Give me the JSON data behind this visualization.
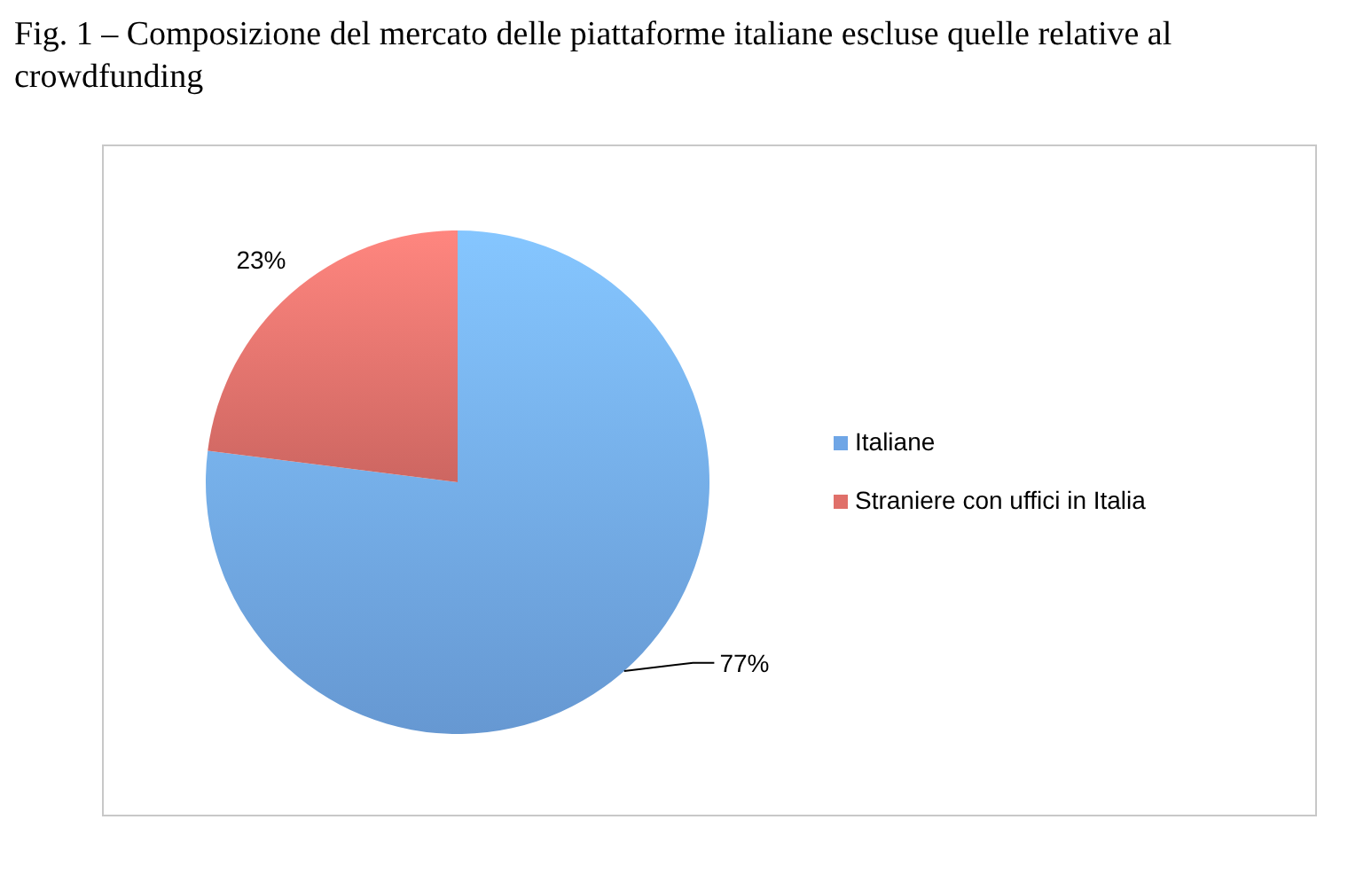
{
  "chart_data": {
    "type": "pie",
    "title": "Fig. 1 – Composizione del mercato delle piattaforme italiane escluse quelle relative al crowdfunding",
    "categories": [
      "Italiane",
      "Straniere con uffici in Italia"
    ],
    "values": [
      77,
      23
    ],
    "colors": [
      "#6fa6e6",
      "#e0706a"
    ],
    "value_labels": [
      "77%",
      "23%"
    ],
    "legend": "right"
  }
}
